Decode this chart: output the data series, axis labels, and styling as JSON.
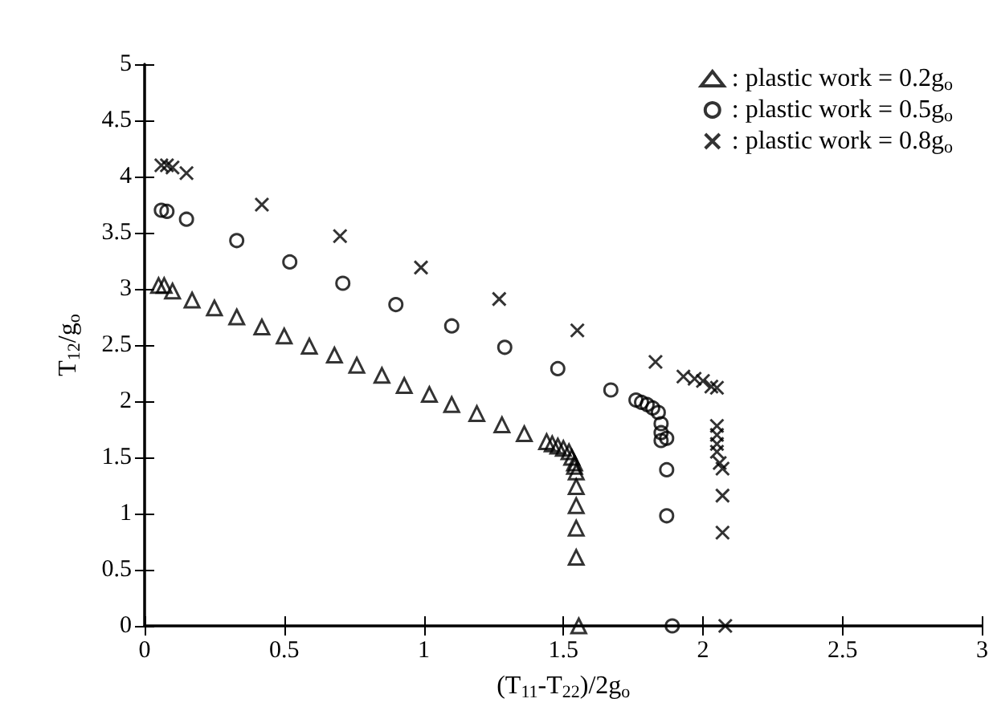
{
  "chart_data": {
    "type": "scatter",
    "xlabel": "(T$_{11}$-T$_{22}$)/2g$_{o}$",
    "ylabel": "T$_{12}$/g$_{o}$",
    "xlim": [
      0,
      3
    ],
    "xticks": [
      0,
      0.5,
      1,
      1.5,
      2,
      2.5,
      3
    ],
    "ylim": [
      0,
      5
    ],
    "yticks": [
      0,
      0.5,
      1,
      1.5,
      2,
      2.5,
      3,
      3.5,
      4,
      4.5,
      5
    ],
    "grid": false,
    "legend": "top right",
    "series": [
      {
        "name": ": plastic work = 0.2g$_{o}$",
        "color": "#000000",
        "marker": "triangle",
        "x": [
          0.05,
          0.07,
          0.1,
          0.17,
          0.25,
          0.33,
          0.42,
          0.5,
          0.59,
          0.68,
          0.76,
          0.85,
          0.93,
          1.02,
          1.1,
          1.19,
          1.28,
          1.36,
          1.44,
          1.46,
          1.48,
          1.5,
          1.52,
          1.53,
          1.54,
          1.54,
          1.546,
          1.546,
          1.546,
          1.546,
          1.546,
          1.555
        ],
        "values": [
          3.03,
          3.03,
          2.98,
          2.9,
          2.83,
          2.75,
          2.66,
          2.58,
          2.49,
          2.41,
          2.32,
          2.23,
          2.14,
          2.06,
          1.97,
          1.89,
          1.79,
          1.71,
          1.64,
          1.62,
          1.6,
          1.58,
          1.55,
          1.5,
          1.45,
          1.42,
          1.37,
          1.24,
          1.07,
          0.87,
          0.61,
          0
        ]
      },
      {
        "name": ": plastic work = 0.5g$_{o}$",
        "color": "#000000",
        "marker": "circle",
        "x": [
          0.06,
          0.08,
          0.15,
          0.33,
          0.52,
          0.71,
          0.9,
          1.1,
          1.29,
          1.48,
          1.67,
          1.76,
          1.78,
          1.8,
          1.82,
          1.84,
          1.85,
          1.85,
          1.85,
          1.87,
          1.87,
          1.87,
          1.89
        ],
        "values": [
          3.7,
          3.69,
          3.62,
          3.43,
          3.24,
          3.05,
          2.86,
          2.67,
          2.48,
          2.29,
          2.1,
          2.01,
          1.99,
          1.97,
          1.94,
          1.9,
          1.8,
          1.72,
          1.65,
          1.67,
          1.39,
          0.98,
          0
        ]
      },
      {
        "name": ": plastic work = 0.8g$_{o}$",
        "color": "#000000",
        "marker": "cross",
        "x": [
          0.06,
          0.08,
          0.1,
          0.15,
          0.42,
          0.7,
          0.99,
          1.27,
          1.55,
          1.83,
          1.93,
          1.97,
          2.0,
          2.03,
          2.05,
          2.05,
          2.05,
          2.05,
          2.05,
          2.06,
          2.07,
          2.07,
          2.07,
          2.08
        ],
        "values": [
          4.1,
          4.1,
          4.08,
          4.03,
          3.75,
          3.47,
          3.19,
          2.91,
          2.63,
          2.35,
          2.22,
          2.2,
          2.18,
          2.13,
          2.12,
          1.78,
          1.7,
          1.62,
          1.55,
          1.45,
          1.4,
          1.16,
          0.83,
          0
        ]
      }
    ]
  }
}
